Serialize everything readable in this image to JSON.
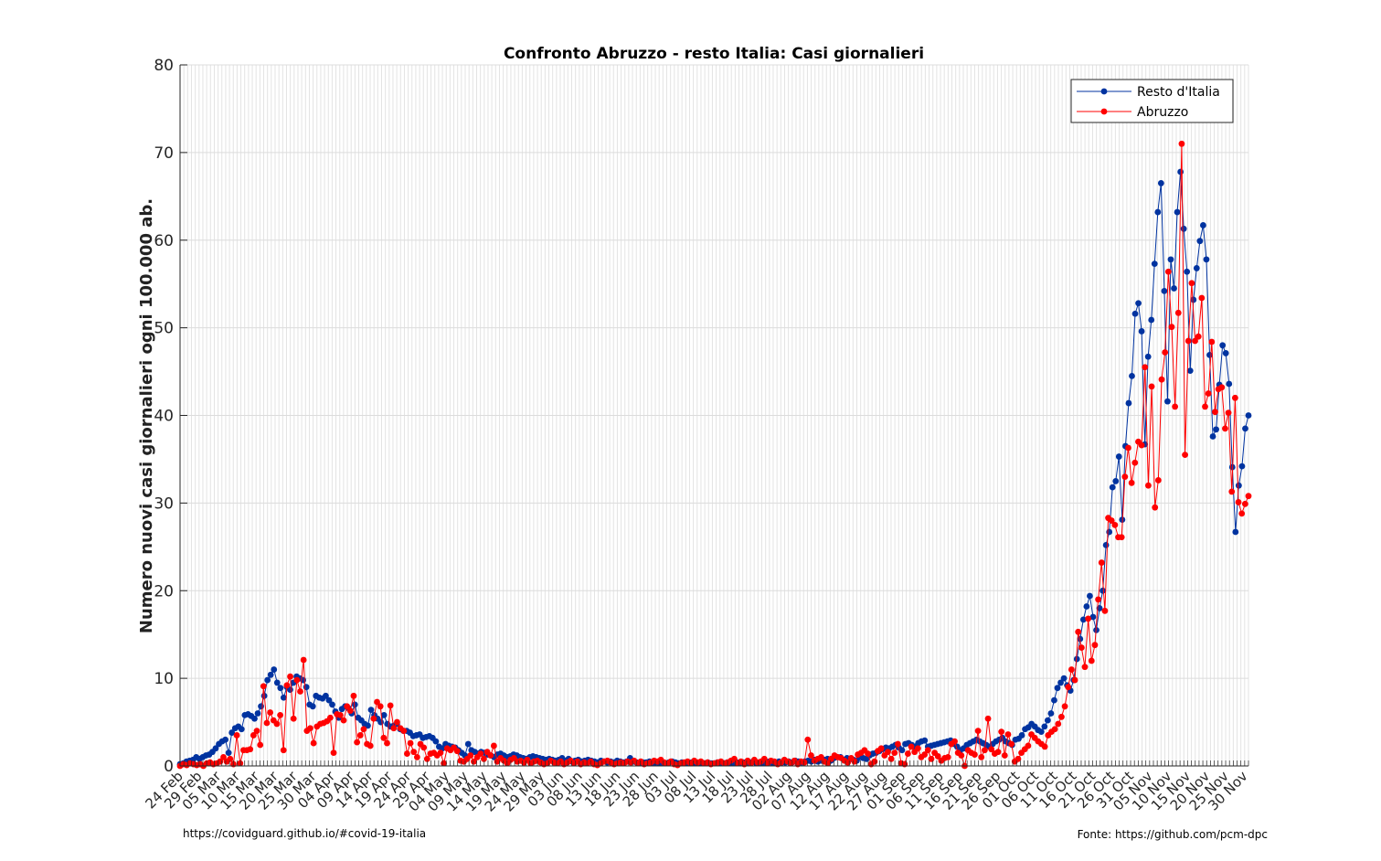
{
  "chart_data": {
    "type": "line",
    "title": "Confronto Abruzzo - resto Italia: Casi giornalieri",
    "xlabel": "",
    "ylabel": "Numero nuovi casi giornalieri ogni 100.000 ab.",
    "ylim": [
      0,
      80
    ],
    "yticks": [
      0,
      10,
      20,
      30,
      40,
      50,
      60,
      70,
      80
    ],
    "grid": true,
    "legend_position": "top-right",
    "x_start": "2020-02-24",
    "x_end": "2020-12-01",
    "xtick_labels": [
      "24 Feb",
      "29 Feb",
      "05 Mar",
      "10 Mar",
      "15 Mar",
      "20 Mar",
      "25 Mar",
      "30 Mar",
      "04 Apr",
      "09 Apr",
      "14 Apr",
      "19 Apr",
      "24 Apr",
      "29 Apr",
      "04 May",
      "09 May",
      "14 May",
      "19 May",
      "24 May",
      "29 May",
      "03 Jun",
      "08 Jun",
      "13 Jun",
      "18 Jun",
      "23 Jun",
      "28 Jun",
      "03 Jul",
      "08 Jul",
      "13 Jul",
      "18 Jul",
      "23 Jul",
      "28 Jul",
      "02 Aug",
      "07 Aug",
      "12 Aug",
      "17 Aug",
      "22 Aug",
      "27 Aug",
      "01 Sep",
      "06 Sep",
      "11 Sep",
      "16 Sep",
      "21 Sep",
      "26 Sep",
      "01 Oct",
      "06 Oct",
      "11 Oct",
      "16 Oct",
      "21 Oct",
      "26 Oct",
      "31 Oct",
      "05 Nov",
      "10 Nov",
      "15 Nov",
      "20 Nov",
      "25 Nov",
      "30 Nov"
    ],
    "series": [
      {
        "name": "Resto d'Italia",
        "color": "#0033a0",
        "values": [
          0.2,
          0.3,
          0.5,
          0.6,
          0.7,
          1.0,
          0.8,
          1.0,
          1.2,
          1.3,
          1.6,
          2.0,
          2.5,
          2.8,
          3.0,
          1.5,
          3.8,
          4.3,
          4.5,
          4.2,
          5.8,
          5.9,
          5.7,
          5.4,
          6.0,
          6.8,
          8.0,
          9.8,
          10.4,
          11.0,
          9.5,
          8.9,
          7.8,
          9.0,
          8.7,
          9.5,
          10.2,
          10.0,
          9.8,
          9.0,
          7.0,
          6.8,
          8.0,
          7.8,
          7.7,
          8.0,
          7.5,
          7.0,
          6.2,
          5.5,
          6.5,
          6.8,
          6.6,
          6.0,
          7.0,
          5.5,
          5.2,
          4.8,
          4.6,
          6.4,
          5.8,
          5.4,
          5.0,
          5.8,
          4.8,
          4.5,
          4.6,
          4.8,
          4.2,
          4.0,
          4.0,
          3.8,
          3.4,
          3.5,
          3.6,
          3.2,
          3.3,
          3.4,
          3.2,
          2.8,
          2.2,
          2.0,
          2.5,
          2.3,
          2.2,
          2.1,
          1.8,
          1.5,
          1.2,
          2.5,
          1.8,
          1.6,
          1.4,
          1.6,
          1.5,
          1.3,
          1.2,
          1.0,
          1.3,
          1.4,
          1.2,
          1.0,
          1.1,
          1.3,
          1.2,
          1.0,
          0.9,
          0.8,
          1.0,
          1.1,
          1.0,
          0.9,
          0.8,
          0.7,
          0.8,
          0.7,
          0.6,
          0.7,
          0.9,
          0.6,
          0.8,
          0.5,
          0.6,
          0.7,
          0.5,
          0.6,
          0.7,
          0.6,
          0.5,
          0.4,
          0.6,
          0.5,
          0.4,
          0.5,
          0.4,
          0.6,
          0.5,
          0.4,
          0.5,
          0.9,
          0.5,
          0.4,
          0.3,
          0.4,
          0.4,
          0.5,
          0.3,
          0.4,
          0.3,
          0.4,
          0.3,
          0.4,
          0.5,
          0.4,
          0.3,
          0.4,
          0.3,
          0.3,
          0.4,
          0.3,
          0.3,
          0.3,
          0.3,
          0.4,
          0.3,
          0.3,
          0.4,
          0.3,
          0.3,
          0.4,
          0.3,
          0.3,
          0.4,
          0.3,
          0.4,
          0.3,
          0.4,
          0.5,
          0.3,
          0.4,
          0.3,
          0.4,
          0.5,
          0.3,
          0.4,
          0.5,
          0.4,
          0.4,
          0.5,
          0.4,
          0.6,
          0.5,
          0.4,
          0.5,
          0.6,
          0.5,
          0.7,
          0.5,
          0.6,
          0.7,
          0.8,
          0.6,
          0.9,
          1.0,
          1.0,
          0.7,
          0.9,
          0.8,
          0.7,
          0.6,
          1.0,
          0.9,
          0.8,
          1.2,
          1.4,
          1.5,
          1.7,
          1.9,
          2.1,
          2.0,
          2.2,
          2.4,
          2.1,
          1.8,
          2.5,
          2.6,
          2.4,
          2.2,
          2.6,
          2.8,
          2.9,
          2.2,
          2.3,
          2.4,
          2.5,
          2.6,
          2.7,
          2.8,
          2.9,
          2.5,
          2.2,
          1.8,
          2.0,
          2.4,
          2.6,
          2.8,
          3.0,
          2.8,
          2.6,
          2.4,
          2.2,
          2.5,
          2.8,
          3.0,
          3.2,
          2.8,
          2.6,
          2.4,
          3.0,
          3.1,
          3.5,
          4.2,
          4.4,
          4.8,
          4.5,
          4.1,
          3.9,
          4.5,
          5.2,
          6.0,
          7.5,
          8.9,
          9.5,
          10.0,
          9.2,
          8.6,
          9.8,
          12.2,
          14.5,
          16.7,
          18.2,
          19.4,
          17.0,
          15.5,
          18.0,
          20.0,
          25.2,
          26.7,
          31.8,
          32.5,
          35.3,
          28.1,
          36.5,
          41.4,
          44.5,
          51.6,
          52.8,
          49.6,
          36.7,
          46.7,
          50.9,
          57.3,
          63.2,
          66.5,
          54.2,
          41.6,
          57.8,
          54.5,
          63.2,
          67.8,
          61.3,
          56.4,
          45.1,
          53.2,
          56.8,
          59.9,
          61.7,
          57.8,
          46.9,
          37.6,
          38.4,
          43.5,
          48.0,
          47.1,
          43.6,
          34.1,
          26.7,
          32.0,
          34.2,
          38.5,
          40.0
        ]
      },
      {
        "name": "Abruzzo",
        "color": "#ff0000",
        "values": [
          0.0,
          0.2,
          0.1,
          0.3,
          0.2,
          0.1,
          0.2,
          0.0,
          0.3,
          0.4,
          0.2,
          0.3,
          0.5,
          1.0,
          0.5,
          0.8,
          0.2,
          3.5,
          0.3,
          1.8,
          1.8,
          1.9,
          3.5,
          4.0,
          2.4,
          9.1,
          4.9,
          6.1,
          5.2,
          4.8,
          5.8,
          1.8,
          9.2,
          10.2,
          5.4,
          9.8,
          8.5,
          12.1,
          4.0,
          4.3,
          2.6,
          4.5,
          4.8,
          4.9,
          5.1,
          5.5,
          1.5,
          5.9,
          5.8,
          5.2,
          6.8,
          6.3,
          8.0,
          2.7,
          3.5,
          4.2,
          2.5,
          2.3,
          5.4,
          7.3,
          6.8,
          3.2,
          2.6,
          6.9,
          4.3,
          5.0,
          4.3,
          4.0,
          1.4,
          2.6,
          1.6,
          1.0,
          2.5,
          2.1,
          0.8,
          1.4,
          1.5,
          1.2,
          1.5,
          0.3,
          2.0,
          1.8,
          2.1,
          1.7,
          0.6,
          0.5,
          0.8,
          1.2,
          0.5,
          1.0,
          1.4,
          0.8,
          1.6,
          1.2,
          2.3,
          0.5,
          0.9,
          0.6,
          0.3,
          0.7,
          0.9,
          0.5,
          0.6,
          0.4,
          0.7,
          0.3,
          0.5,
          0.6,
          0.4,
          0.2,
          0.3,
          0.6,
          0.4,
          0.3,
          0.5,
          0.2,
          0.4,
          0.6,
          0.3,
          0.5,
          0.2,
          0.4,
          0.3,
          0.5,
          0.2,
          0.1,
          0.3,
          0.5,
          0.6,
          0.4,
          0.2,
          0.3,
          0.4,
          0.3,
          0.5,
          0.4,
          0.6,
          0.3,
          0.5,
          0.2,
          0.3,
          0.4,
          0.6,
          0.5,
          0.7,
          0.4,
          0.3,
          0.5,
          0.2,
          0.1,
          0.3,
          0.4,
          0.5,
          0.3,
          0.6,
          0.4,
          0.5,
          0.3,
          0.4,
          0.2,
          0.3,
          0.4,
          0.5,
          0.3,
          0.4,
          0.6,
          0.8,
          0.3,
          0.5,
          0.2,
          0.6,
          0.3,
          0.7,
          0.4,
          0.5,
          0.8,
          0.3,
          0.6,
          0.5,
          0.2,
          0.4,
          0.7,
          0.5,
          0.3,
          0.6,
          0.2,
          0.5,
          0.4,
          3.0,
          1.2,
          0.6,
          0.8,
          1.0,
          0.5,
          0.3,
          0.8,
          1.2,
          1.0,
          0.9,
          0.6,
          0.4,
          0.9,
          0.5,
          1.3,
          1.5,
          1.8,
          1.4,
          0.2,
          0.5,
          1.7,
          2.0,
          1.2,
          1.6,
          0.8,
          1.5,
          2.5,
          0.3,
          0.2,
          1.4,
          2.2,
          1.6,
          2.0,
          1.0,
          1.3,
          1.8,
          0.8,
          1.5,
          1.1,
          0.6,
          0.9,
          1.0,
          2.5,
          2.8,
          1.5,
          1.2,
          0.0,
          1.8,
          1.5,
          1.3,
          4.0,
          1.0,
          1.8,
          5.4,
          1.9,
          1.4,
          1.6,
          3.9,
          1.2,
          3.6,
          2.5,
          0.5,
          0.8,
          1.5,
          1.9,
          2.3,
          3.6,
          3.2,
          2.8,
          2.5,
          2.2,
          3.5,
          3.9,
          4.2,
          4.8,
          5.6,
          6.8,
          9.0,
          11.0,
          9.8,
          15.3,
          13.5,
          11.3,
          16.8,
          12.0,
          13.8,
          19.0,
          23.2,
          17.7,
          28.3,
          28.0,
          27.5,
          26.1,
          26.1,
          33.0,
          36.3,
          32.3,
          34.6,
          37.0,
          36.6,
          45.5,
          32.0,
          43.3,
          29.5,
          32.6,
          44.1,
          47.2,
          56.4,
          50.1,
          41.0,
          51.7,
          71.0,
          35.5,
          48.5,
          55.1,
          48.5,
          49.0,
          53.4,
          41.0,
          42.5,
          48.4,
          40.4,
          43.0,
          43.2,
          38.5,
          40.3,
          31.3,
          42.0,
          30.1,
          28.8,
          29.9,
          30.8
        ]
      }
    ]
  },
  "footer": {
    "left": "https://covidguard.github.io/#covid-19-italia",
    "right": "Fonte: https://github.com/pcm-dpc"
  }
}
